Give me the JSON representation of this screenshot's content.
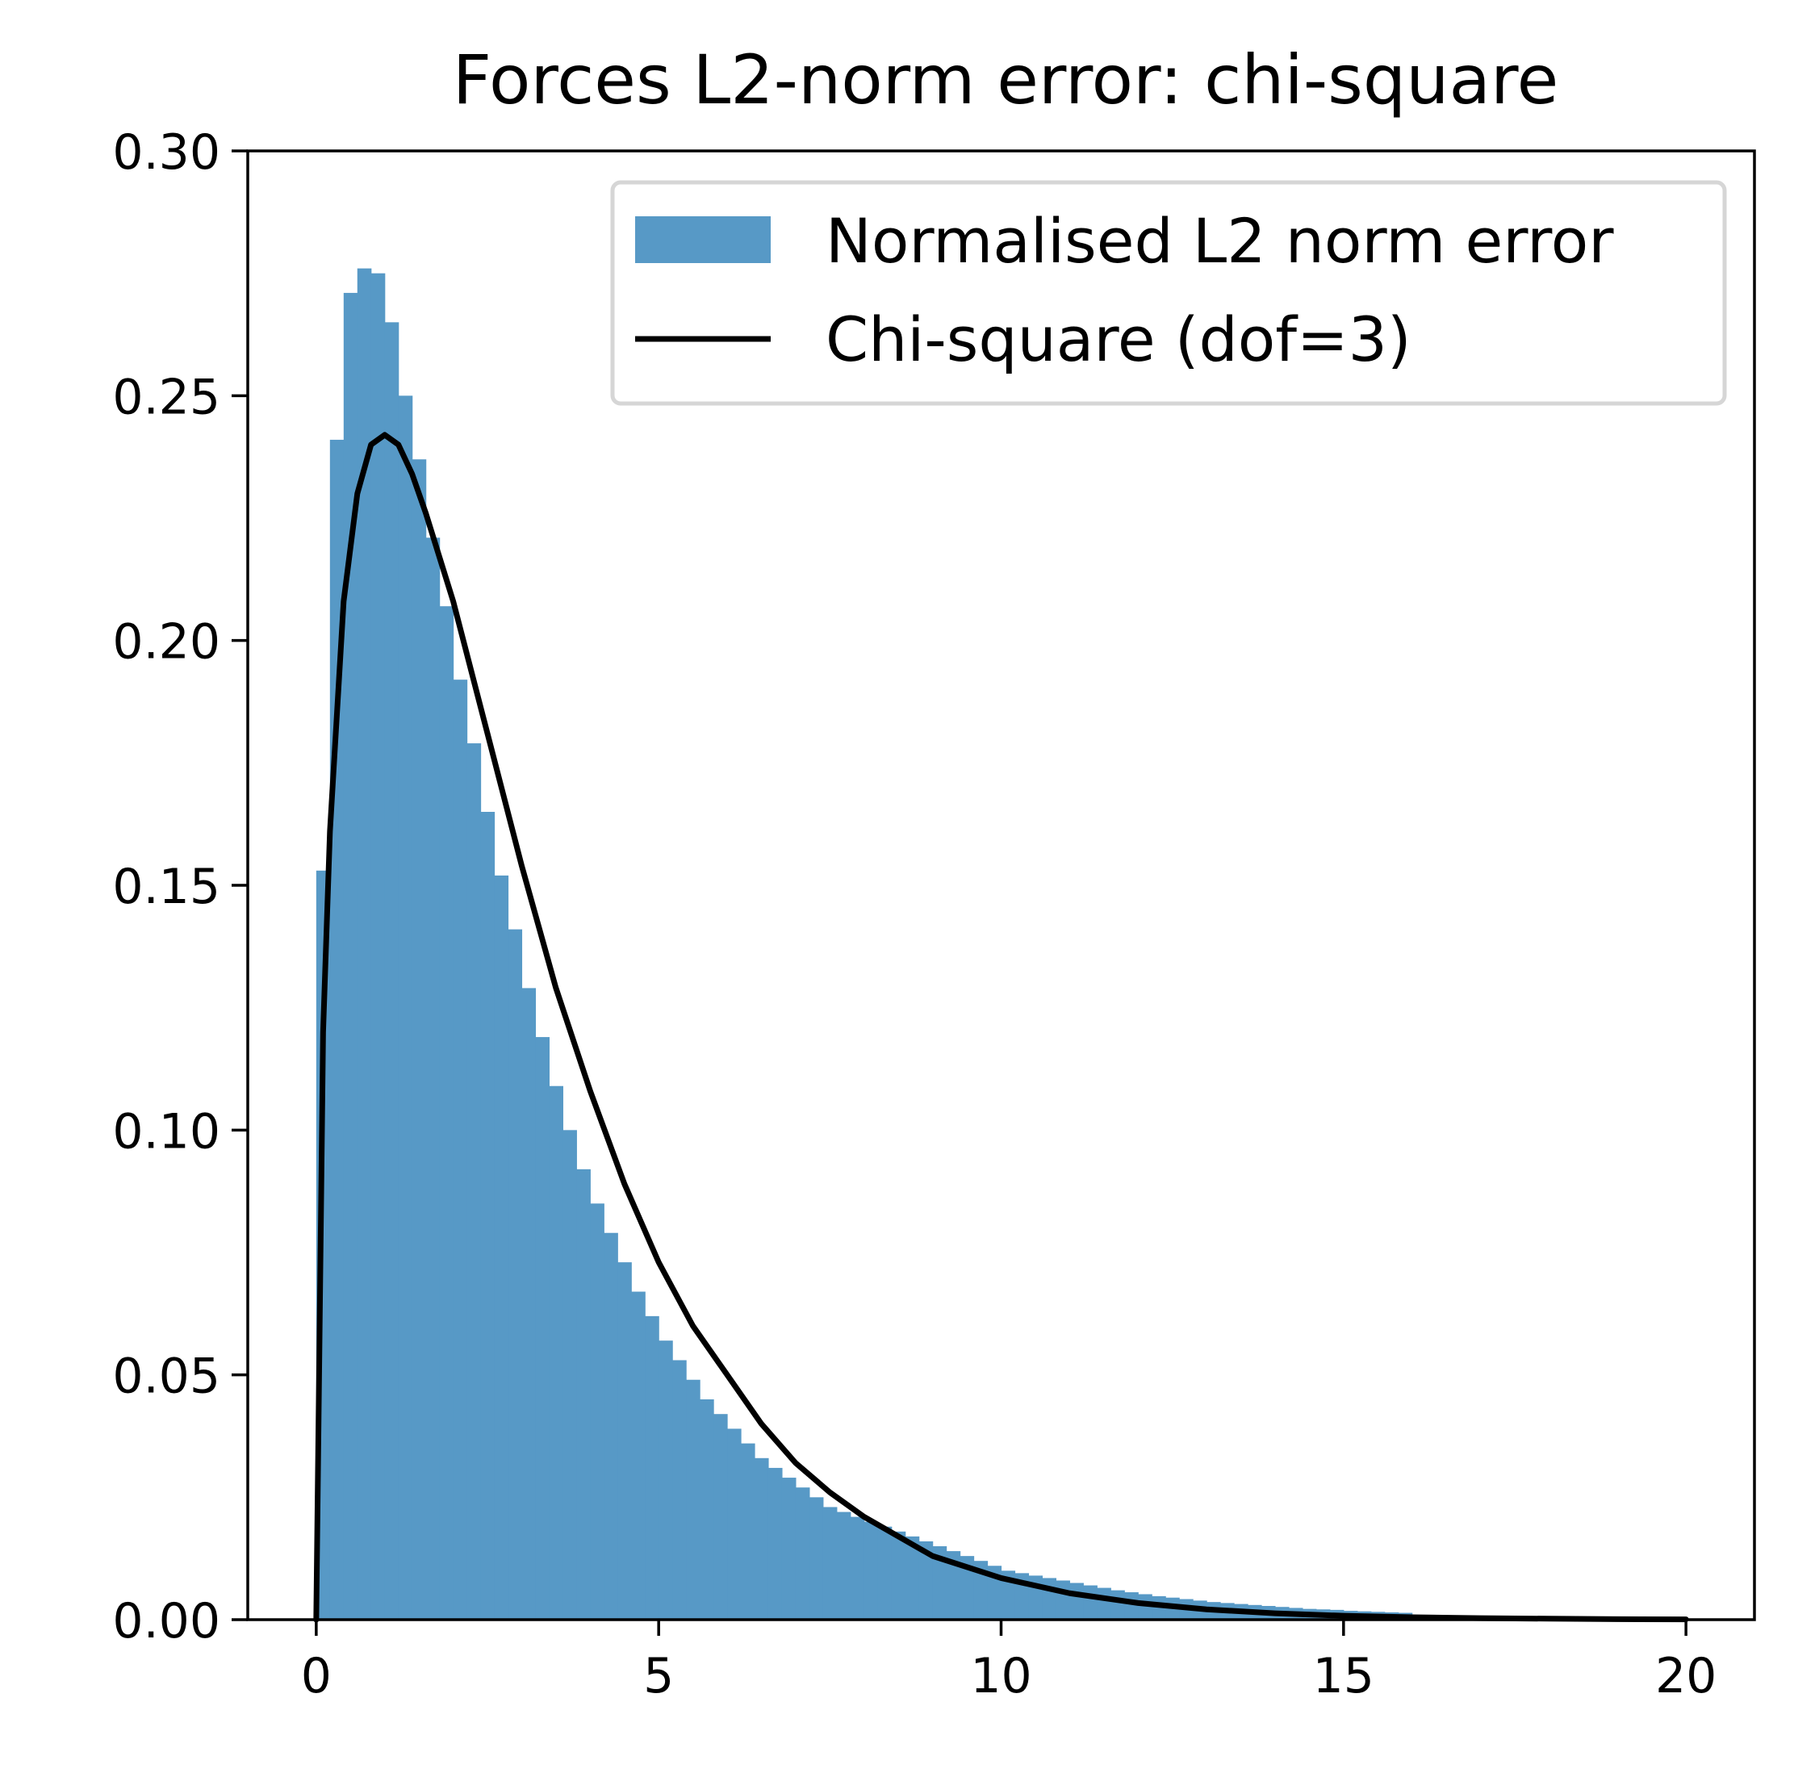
{
  "chart_data": {
    "type": "bar",
    "title": "Forces L2-norm error: chi-square",
    "xlabel": "",
    "ylabel": "",
    "xlim": [
      -1,
      21
    ],
    "ylim": [
      0,
      0.3
    ],
    "xticks": [
      0,
      5,
      10,
      15,
      20
    ],
    "xtick_labels": [
      "0",
      "5",
      "10",
      "15",
      "20"
    ],
    "yticks": [
      0,
      0.05,
      0.1,
      0.15,
      0.2,
      0.25,
      0.3
    ],
    "ytick_labels": [
      "0.00",
      "0.05",
      "0.10",
      "0.15",
      "0.20",
      "0.25",
      "0.30"
    ],
    "grid": false,
    "legend_position": "upper right",
    "histogram": {
      "name": "Normalised L2 norm error",
      "color": "#5799c6",
      "bin_edges_start": 0,
      "bin_width": 0.2,
      "values": [
        0.153,
        0.241,
        0.271,
        0.276,
        0.275,
        0.265,
        0.25,
        0.237,
        0.221,
        0.207,
        0.192,
        0.179,
        0.165,
        0.152,
        0.141,
        0.129,
        0.119,
        0.109,
        0.1,
        0.092,
        0.085,
        0.079,
        0.073,
        0.067,
        0.062,
        0.057,
        0.053,
        0.049,
        0.045,
        0.042,
        0.039,
        0.036,
        0.033,
        0.031,
        0.029,
        0.027,
        0.025,
        0.023,
        0.022,
        0.021,
        0.02,
        0.019,
        0.018,
        0.017,
        0.016,
        0.015,
        0.014,
        0.013,
        0.012,
        0.011,
        0.01,
        0.0095,
        0.009,
        0.0085,
        0.008,
        0.0075,
        0.007,
        0.0065,
        0.006,
        0.0056,
        0.0052,
        0.0048,
        0.0045,
        0.0042,
        0.0039,
        0.0036,
        0.0034,
        0.0032,
        0.003,
        0.0028,
        0.0026,
        0.0024,
        0.0022,
        0.0021,
        0.002,
        0.0018,
        0.0017,
        0.0016,
        0.0015,
        0.0014
      ]
    },
    "series": [
      {
        "name": "Chi-square (dof=3)",
        "type": "line",
        "color": "#000000",
        "x": [
          0,
          0.1,
          0.2,
          0.4,
          0.6,
          0.8,
          1.0,
          1.2,
          1.4,
          1.6,
          1.8,
          2.0,
          2.5,
          3.0,
          3.5,
          4.0,
          4.5,
          5.0,
          5.5,
          6.0,
          6.5,
          7.0,
          7.5,
          8.0,
          9.0,
          10.0,
          11.0,
          12.0,
          13.0,
          14.0,
          15.0,
          16.0,
          17.0,
          18.0,
          19.0,
          20.0
        ],
        "y": [
          0,
          0.12,
          0.161,
          0.208,
          0.23,
          0.24,
          0.242,
          0.24,
          0.234,
          0.226,
          0.217,
          0.208,
          0.181,
          0.154,
          0.129,
          0.108,
          0.089,
          0.073,
          0.06,
          0.05,
          0.04,
          0.032,
          0.026,
          0.021,
          0.013,
          0.0085,
          0.0054,
          0.0034,
          0.0021,
          0.0013,
          0.0008,
          0.0005,
          0.0003,
          0.0002,
          0.0001,
          7e-05
        ]
      }
    ]
  }
}
